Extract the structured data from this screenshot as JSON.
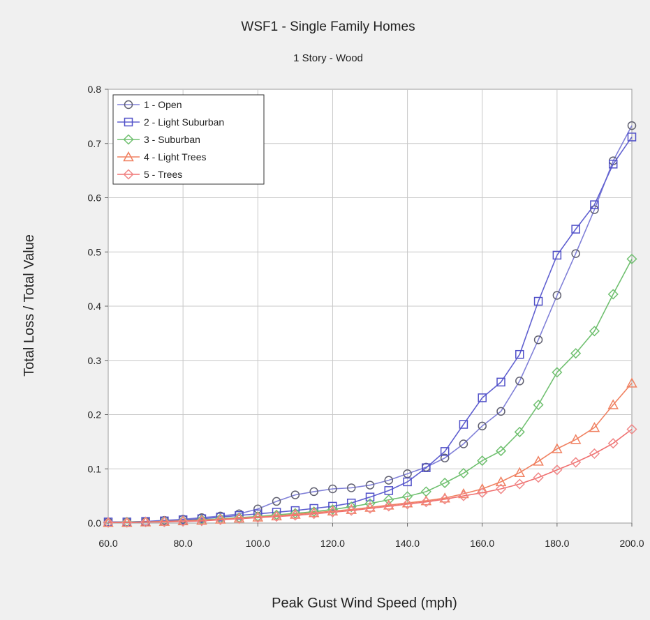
{
  "chart_data": {
    "type": "line",
    "title": "WSF1 - Single Family Homes",
    "subtitle": "1 Story - Wood",
    "xlabel": "Peak Gust Wind Speed (mph)",
    "ylabel": "Total Loss / Total Value",
    "xlim": [
      60,
      200
    ],
    "ylim": [
      0,
      0.8
    ],
    "x_ticks": [
      "60.0",
      "80.0",
      "100.0",
      "120.0",
      "140.0",
      "160.0",
      "180.0",
      "200.0"
    ],
    "y_ticks": [
      "0.0",
      "0.1",
      "0.2",
      "0.3",
      "0.4",
      "0.5",
      "0.6",
      "0.7",
      "0.8"
    ],
    "grid": true,
    "legend_position": "top-left",
    "x": [
      60,
      65,
      70,
      75,
      80,
      85,
      90,
      95,
      100,
      105,
      110,
      115,
      120,
      125,
      130,
      135,
      140,
      145,
      150,
      155,
      160,
      165,
      170,
      175,
      180,
      185,
      190,
      195,
      200
    ],
    "series": [
      {
        "name": "1 - Open",
        "color": "#8080d8",
        "marker_color": "#606070",
        "marker": "circle",
        "values": [
          0.002,
          0.002,
          0.003,
          0.005,
          0.007,
          0.01,
          0.013,
          0.017,
          0.026,
          0.04,
          0.052,
          0.058,
          0.063,
          0.065,
          0.07,
          0.079,
          0.091,
          0.103,
          0.12,
          0.146,
          0.179,
          0.206,
          0.262,
          0.338,
          0.42,
          0.497,
          0.578,
          0.668,
          0.733
        ]
      },
      {
        "name": "2 - Light Suburban",
        "color": "#6060d0",
        "marker_color": "#5050c8",
        "marker": "square",
        "values": [
          0.002,
          0.002,
          0.003,
          0.004,
          0.006,
          0.008,
          0.011,
          0.014,
          0.017,
          0.02,
          0.023,
          0.027,
          0.031,
          0.037,
          0.048,
          0.06,
          0.076,
          0.102,
          0.132,
          0.182,
          0.231,
          0.26,
          0.311,
          0.409,
          0.494,
          0.542,
          0.587,
          0.662,
          0.712
        ]
      },
      {
        "name": "3 - Suburban",
        "color": "#70c070",
        "marker_color": "#70c070",
        "marker": "diamond",
        "values": [
          0.001,
          0.002,
          0.002,
          0.003,
          0.004,
          0.006,
          0.008,
          0.01,
          0.012,
          0.015,
          0.018,
          0.021,
          0.025,
          0.03,
          0.036,
          0.043,
          0.049,
          0.058,
          0.074,
          0.092,
          0.115,
          0.133,
          0.168,
          0.218,
          0.278,
          0.313,
          0.354,
          0.422,
          0.487
        ]
      },
      {
        "name": "4 - Light Trees",
        "color": "#f08060",
        "marker_color": "#f08060",
        "marker": "triangle",
        "values": [
          0.001,
          0.001,
          0.002,
          0.003,
          0.004,
          0.005,
          0.007,
          0.009,
          0.011,
          0.013,
          0.016,
          0.019,
          0.022,
          0.025,
          0.029,
          0.033,
          0.037,
          0.041,
          0.046,
          0.054,
          0.063,
          0.076,
          0.093,
          0.114,
          0.137,
          0.154,
          0.176,
          0.218,
          0.258
        ]
      },
      {
        "name": "5 - Trees",
        "color": "#f07070",
        "marker_color": "#f08888",
        "marker": "diamond",
        "values": [
          0.001,
          0.001,
          0.002,
          0.002,
          0.003,
          0.004,
          0.006,
          0.008,
          0.01,
          0.012,
          0.014,
          0.017,
          0.02,
          0.023,
          0.027,
          0.031,
          0.035,
          0.039,
          0.044,
          0.05,
          0.056,
          0.063,
          0.072,
          0.084,
          0.098,
          0.112,
          0.128,
          0.147,
          0.173
        ]
      }
    ]
  }
}
